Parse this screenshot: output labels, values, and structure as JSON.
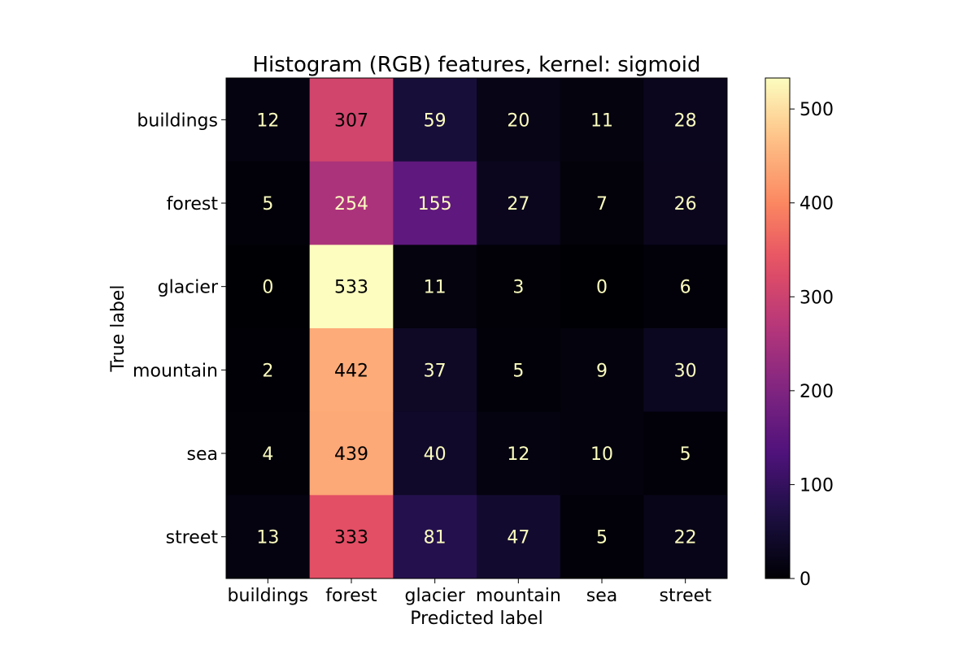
{
  "chart_data": {
    "type": "heatmap",
    "title": "Histogram (RGB) features, kernel: sigmoid",
    "xlabel": "Predicted label",
    "ylabel": "True label",
    "x_categories": [
      "buildings",
      "forest",
      "glacier",
      "mountain",
      "sea",
      "street"
    ],
    "y_categories": [
      "buildings",
      "forest",
      "glacier",
      "mountain",
      "sea",
      "street"
    ],
    "values": [
      [
        12,
        307,
        59,
        20,
        11,
        28
      ],
      [
        5,
        254,
        155,
        27,
        7,
        26
      ],
      [
        0,
        533,
        11,
        3,
        0,
        6
      ],
      [
        2,
        442,
        37,
        5,
        9,
        30
      ],
      [
        4,
        439,
        40,
        12,
        10,
        5
      ],
      [
        13,
        333,
        81,
        47,
        5,
        22
      ]
    ],
    "colormap": "magma",
    "colorbar": {
      "range": [
        0,
        533
      ],
      "ticks": [
        0,
        100,
        200,
        300,
        400,
        500
      ]
    }
  }
}
